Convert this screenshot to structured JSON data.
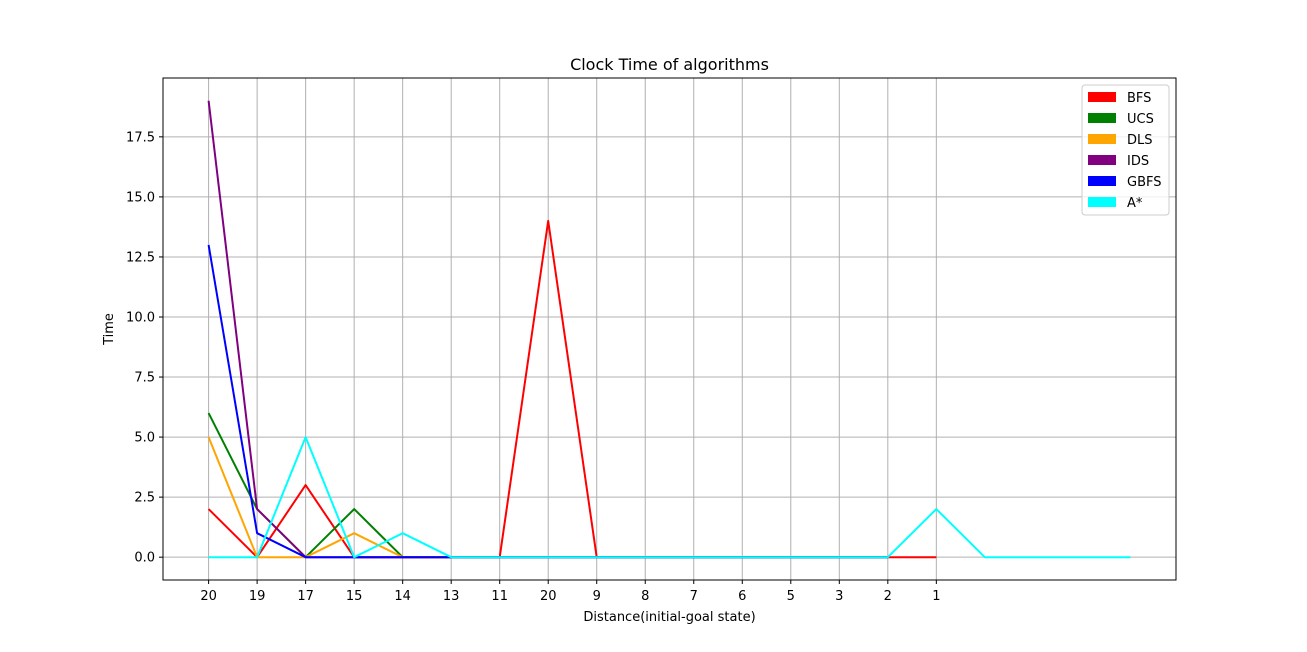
{
  "chart_data": {
    "type": "line",
    "title": "Clock Time of algorithms",
    "xlabel": "Distance(initial-goal state)",
    "ylabel": "Time",
    "x_tick_labels": [
      "20",
      "19",
      "17",
      "15",
      "14",
      "13",
      "11",
      "20",
      "9",
      "8",
      "7",
      "6",
      "5",
      "3",
      "2",
      "1"
    ],
    "x_index_range": [
      -0.94,
      19.94
    ],
    "ylim": [
      -0.95,
      19.95
    ],
    "y_ticks": [
      0.0,
      2.5,
      5.0,
      7.5,
      10.0,
      12.5,
      15.0,
      17.5
    ],
    "y_tick_labels": [
      "0.0",
      "2.5",
      "5.0",
      "7.5",
      "10.0",
      "12.5",
      "15.0",
      "17.5"
    ],
    "grid": true,
    "legend_position": "top-right",
    "series": [
      {
        "name": "BFS",
        "color": "#ff0000",
        "values": [
          2,
          0,
          3,
          0,
          0,
          0,
          0,
          14,
          0,
          0,
          0,
          0,
          0,
          0,
          0,
          0
        ]
      },
      {
        "name": "UCS",
        "color": "#008000",
        "values": [
          6,
          2,
          0,
          2,
          0,
          0,
          0,
          0,
          0,
          0,
          0,
          0,
          0,
          0,
          0
        ]
      },
      {
        "name": "DLS",
        "color": "#ffa500",
        "values": [
          5,
          0,
          0,
          1,
          0,
          0,
          0,
          0,
          0,
          0,
          0,
          0,
          0,
          0,
          0
        ]
      },
      {
        "name": "IDS",
        "color": "#800080",
        "values": [
          19,
          2,
          0,
          0,
          0,
          0,
          0,
          0,
          0,
          0,
          0,
          0,
          0,
          0,
          0
        ]
      },
      {
        "name": "GBFS",
        "color": "#0000ff",
        "values": [
          13,
          1,
          0,
          0,
          0,
          0,
          0,
          0,
          0,
          0,
          0,
          0,
          0,
          0,
          0
        ]
      },
      {
        "name": "A*",
        "color": "#00ffff",
        "values": [
          0,
          0,
          5,
          0,
          1,
          0,
          0,
          0,
          0,
          0,
          0,
          0,
          0,
          0,
          0,
          2,
          0,
          0,
          0,
          0
        ]
      }
    ]
  }
}
